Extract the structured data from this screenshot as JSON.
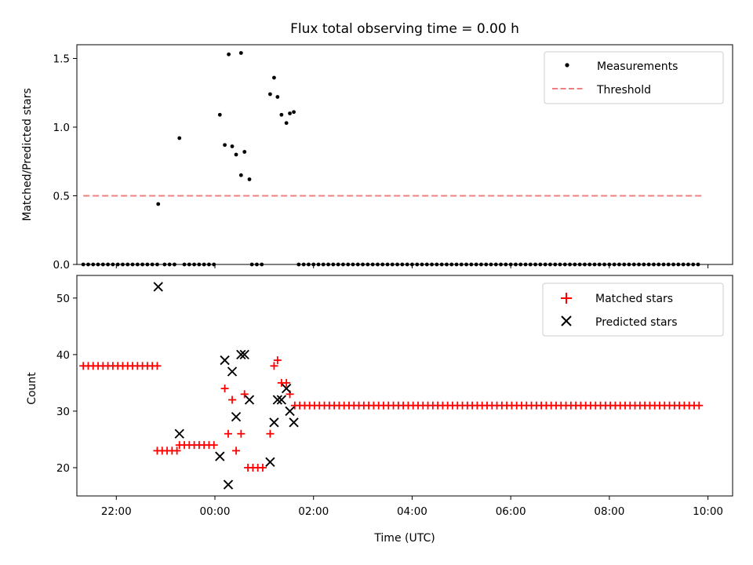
{
  "chart_data": [
    {
      "type": "scatter",
      "title": "Flux total observing time = 0.00 h",
      "xlabel": "",
      "ylabel": "Matched/Predicted stars",
      "xlim": [
        -2.8,
        10.5
      ],
      "ylim": [
        0,
        1.6
      ],
      "yticks": [
        0.0,
        0.5,
        1.0,
        1.5
      ],
      "ytick_labels": [
        "0.0",
        "0.5",
        "1.0",
        "1.5"
      ],
      "xticks": [
        -2,
        0,
        2,
        4,
        6,
        8,
        10
      ],
      "xtick_labels": [
        "",
        "",
        "",
        "",
        "",
        "",
        ""
      ],
      "legend_position": "top-right",
      "series": [
        {
          "name": "Measurements",
          "kind": "points",
          "color": "#000000",
          "zero_runs": [
            [
              -2.67,
              -1.17,
              0.1
            ],
            [
              -1.02,
              -0.77,
              0.1
            ],
            [
              -0.62,
              -0.02,
              0.1
            ],
            [
              0.75,
              1.0,
              0.1
            ],
            [
              1.7,
              9.87,
              0.1
            ]
          ],
          "points": [
            [
              -1.15,
              0.44
            ],
            [
              -0.72,
              0.92
            ],
            [
              0.1,
              1.09
            ],
            [
              0.2,
              0.87
            ],
            [
              0.35,
              0.86
            ],
            [
              0.43,
              0.8
            ],
            [
              0.53,
              1.54
            ],
            [
              0.6,
              0.82
            ],
            [
              0.7,
              0.62
            ],
            [
              1.12,
              1.24
            ],
            [
              1.2,
              1.36
            ],
            [
              1.27,
              1.22
            ],
            [
              1.35,
              1.09
            ],
            [
              1.45,
              1.03
            ],
            [
              1.52,
              1.1
            ],
            [
              1.6,
              1.11
            ],
            [
              0.28,
              1.53
            ],
            [
              0.53,
              0.65
            ]
          ]
        },
        {
          "name": "Threshold",
          "kind": "line",
          "color": "#f08080",
          "dash": true,
          "x": [
            -2.67,
            9.87
          ],
          "y": [
            0.5,
            0.5
          ]
        }
      ]
    },
    {
      "type": "scatter",
      "title": "",
      "xlabel": "Time (UTC)",
      "ylabel": "Count",
      "xlim": [
        -2.8,
        10.5
      ],
      "ylim": [
        15,
        54
      ],
      "yticks": [
        20,
        30,
        40,
        50
      ],
      "ytick_labels": [
        "20",
        "30",
        "40",
        "50"
      ],
      "xticks": [
        -2,
        0,
        2,
        4,
        6,
        8,
        10
      ],
      "xtick_labels": [
        "22:00",
        "00:00",
        "02:00",
        "04:00",
        "06:00",
        "08:00",
        "10:00"
      ],
      "legend_position": "top-right",
      "series": [
        {
          "name": "Matched stars",
          "marker": "plus",
          "color": "#ff0000",
          "runs": [
            [
              -2.67,
              -1.17,
              0.1,
              38
            ],
            [
              -1.17,
              -0.77,
              0.1,
              23
            ],
            [
              -0.72,
              0.05,
              0.1,
              24
            ],
            [
              0.67,
              1.02,
              0.1,
              20
            ],
            [
              1.62,
              9.87,
              0.1,
              31
            ]
          ],
          "points": [
            [
              0.2,
              34
            ],
            [
              0.27,
              26
            ],
            [
              0.35,
              32
            ],
            [
              0.43,
              23
            ],
            [
              0.53,
              26
            ],
            [
              0.6,
              33
            ],
            [
              1.12,
              26
            ],
            [
              1.2,
              38
            ],
            [
              1.27,
              39
            ],
            [
              1.35,
              35
            ],
            [
              1.45,
              35
            ],
            [
              1.52,
              33
            ]
          ]
        },
        {
          "name": "Predicted stars",
          "marker": "x",
          "color": "#000000",
          "points": [
            [
              -1.15,
              52
            ],
            [
              -0.72,
              26
            ],
            [
              0.1,
              22
            ],
            [
              0.2,
              39
            ],
            [
              0.27,
              17
            ],
            [
              0.35,
              37
            ],
            [
              0.43,
              29
            ],
            [
              0.53,
              40
            ],
            [
              0.6,
              40
            ],
            [
              0.7,
              32
            ],
            [
              1.12,
              21
            ],
            [
              1.2,
              28
            ],
            [
              1.27,
              32
            ],
            [
              1.35,
              32
            ],
            [
              1.45,
              34
            ],
            [
              1.52,
              30
            ],
            [
              1.6,
              28
            ]
          ]
        }
      ]
    }
  ]
}
